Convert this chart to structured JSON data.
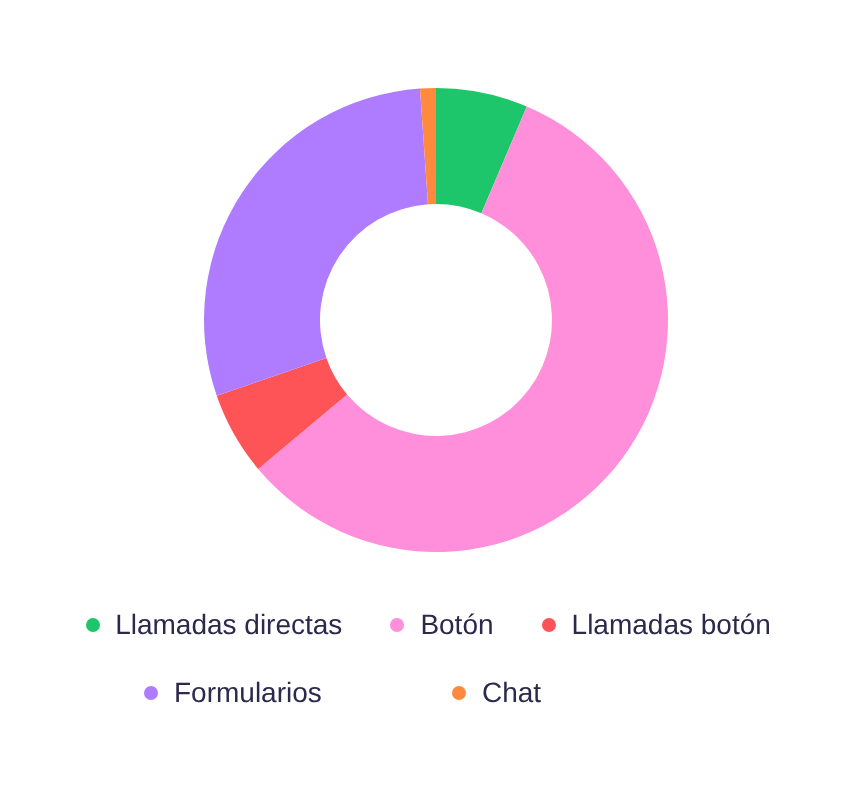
{
  "chart_data": {
    "type": "donut",
    "categories": [
      "Llamadas directas",
      "Botón",
      "Llamadas botón",
      "Formularios",
      "Chat"
    ],
    "values": [
      6.4,
      57.5,
      5.8,
      29.2,
      1.1
    ],
    "colors": [
      "#1dc66a",
      "#ff8fda",
      "#ff5457",
      "#b07cff",
      "#ff8a3d"
    ],
    "legend": "bottom"
  }
}
